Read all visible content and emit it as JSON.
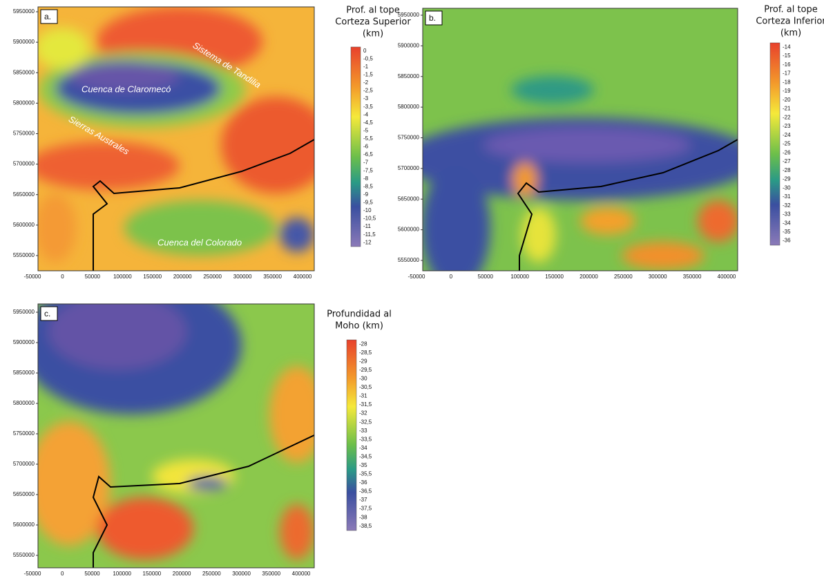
{
  "panels": [
    {
      "label": "a.",
      "legend_title": [
        "Prof. al tope",
        "Corteza Superior",
        "(km)"
      ],
      "legend_labels": [
        "0",
        "-0,5",
        "-1",
        "-1,5",
        "-2",
        "-2,5",
        "-3",
        "-3,5",
        "-4",
        "-4,5",
        "-5",
        "-5,5",
        "-6",
        "-6,5",
        "-7",
        "-7,5",
        "-8",
        "-8,5",
        "-9",
        "-9,5",
        "-10",
        "-10,5",
        "-11",
        "-11,5",
        "-12"
      ],
      "annotations": [
        "Cuenca de Claromecó",
        "Sistema de Tandilia",
        "Sierras Australes",
        "Cuenca del Colorado"
      ],
      "y_ticks": [
        "5950000",
        "5900000",
        "5850000",
        "5800000",
        "5750000",
        "5700000",
        "5650000",
        "5600000",
        "5550000"
      ],
      "x_ticks": [
        "-50000",
        "0",
        "50000",
        "100000",
        "150000",
        "200000",
        "250000",
        "300000",
        "350000",
        "400000"
      ]
    },
    {
      "label": "b.",
      "legend_title": [
        "Prof. al tope",
        "Corteza Inferior",
        "(km)"
      ],
      "legend_labels": [
        "-14",
        "-15",
        "-16",
        "-17",
        "-18",
        "-19",
        "-20",
        "-21",
        "-22",
        "-23",
        "-24",
        "-25",
        "-26",
        "-27",
        "-28",
        "-29",
        "-30",
        "-31",
        "-32",
        "-33",
        "-34",
        "-35",
        "-36"
      ],
      "annotations": [],
      "y_ticks": [
        "5950000",
        "5900000",
        "5850000",
        "5800000",
        "5750000",
        "5700000",
        "5650000",
        "5600000",
        "5550000"
      ],
      "x_ticks": [
        "-50000",
        "0",
        "50000",
        "100000",
        "150000",
        "200000",
        "250000",
        "300000",
        "350000",
        "400000"
      ]
    },
    {
      "label": "c.",
      "legend_title": [
        "Profundidad al",
        "Moho (km)"
      ],
      "legend_labels": [
        "-28",
        "-28,5",
        "-29",
        "-29,5",
        "-30",
        "-30,5",
        "-31",
        "-31,5",
        "-32",
        "-32,5",
        "-33",
        "-33,5",
        "-34",
        "-34,5",
        "-35",
        "-35,5",
        "-36",
        "-36,5",
        "-37",
        "-37,5",
        "-38",
        "-38,5"
      ],
      "annotations": [],
      "y_ticks": [
        "5950000",
        "5900000",
        "5850000",
        "5800000",
        "5750000",
        "5700000",
        "5650000",
        "5600000",
        "5550000"
      ],
      "x_ticks": [
        "-50000",
        "0",
        "50000",
        "100000",
        "150000",
        "200000",
        "250000",
        "300000",
        "350000",
        "400000"
      ]
    }
  ]
}
